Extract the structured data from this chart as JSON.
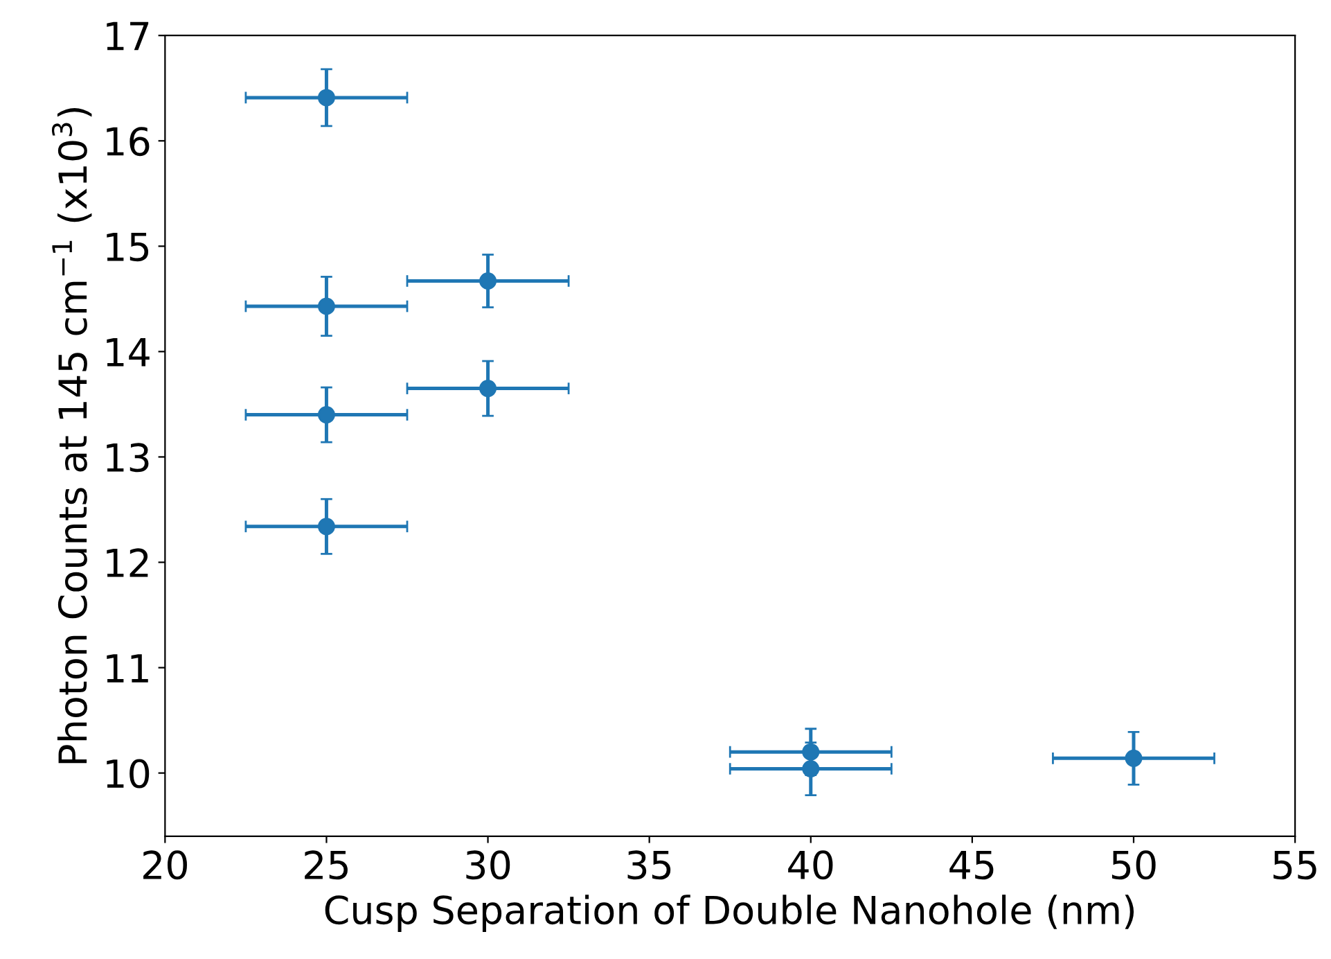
{
  "chart_data": {
    "type": "scatter",
    "xlabel": "Cusp Separation of Double Nanohole (nm)",
    "ylabel": "Photon Counts at 145 cm$^{−1}$ (x10$^{3}$)",
    "x": [
      25,
      25,
      25,
      25,
      30,
      30,
      40,
      40,
      50
    ],
    "series": [
      {
        "color": "#1f77b4",
        "values": [
          16.41,
          14.43,
          13.4,
          12.34,
          14.67,
          13.65,
          10.2,
          10.04,
          10.14
        ],
        "errors": [
          0.27,
          0.28,
          0.26,
          0.26,
          0.25,
          0.26,
          0.22,
          0.25,
          0.25
        ],
        "xerrors": [
          2.5,
          2.5,
          2.5,
          2.5,
          2.5,
          2.5,
          2.5,
          2.5,
          2.5
        ]
      }
    ],
    "marker": "circle",
    "xlim": [
      20,
      55
    ],
    "xticks": [
      20,
      25,
      30,
      35,
      40,
      45,
      50,
      55
    ],
    "ylim": [
      9.4,
      17
    ],
    "yticks": [
      10,
      11,
      12,
      13,
      14,
      15,
      16,
      17
    ],
    "grid": false,
    "legend": false
  }
}
